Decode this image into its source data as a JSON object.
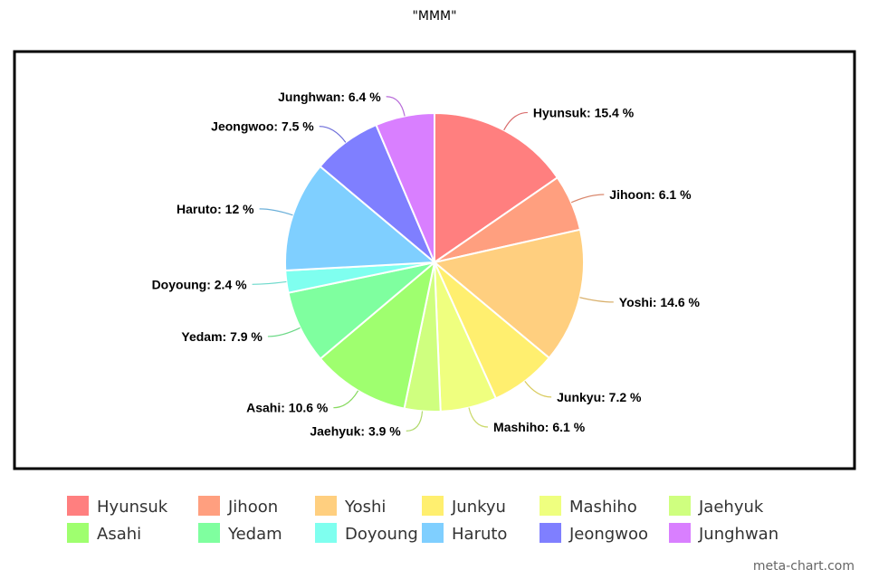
{
  "chart_data": {
    "type": "pie",
    "title": "\"MMM\"",
    "slices": [
      {
        "name": "Hyunsuk",
        "value": 15.4,
        "label": "Hyunsuk: 15.4 %",
        "color": "#ff7f7f"
      },
      {
        "name": "Jihoon",
        "value": 6.1,
        "label": "Jihoon: 6.1 %",
        "color": "#ff9f7f"
      },
      {
        "name": "Yoshi",
        "value": 14.6,
        "label": "Yoshi: 14.6 %",
        "color": "#ffcf7f"
      },
      {
        "name": "Junkyu",
        "value": 7.2,
        "label": "Junkyu: 7.2 %",
        "color": "#ffef6f"
      },
      {
        "name": "Mashiho",
        "value": 6.1,
        "label": "Mashiho: 6.1 %",
        "color": "#efff7f"
      },
      {
        "name": "Jaehyuk",
        "value": 3.9,
        "label": "Jaehyuk: 3.9 %",
        "color": "#cfff7f"
      },
      {
        "name": "Asahi",
        "value": 10.6,
        "label": "Asahi: 10.6 %",
        "color": "#9fff6f"
      },
      {
        "name": "Yedam",
        "value": 7.9,
        "label": "Yedam: 7.9 %",
        "color": "#7fff9f"
      },
      {
        "name": "Doyoung",
        "value": 2.4,
        "label": "Doyoung: 2.4 %",
        "color": "#7fffef"
      },
      {
        "name": "Haruto",
        "value": 12,
        "label": "Haruto: 12 %",
        "color": "#7fcfff"
      },
      {
        "name": "Jeongwoo",
        "value": 7.5,
        "label": "Jeongwoo: 7.5 %",
        "color": "#7f7fff"
      },
      {
        "name": "Junghwan",
        "value": 6.4,
        "label": "Junghwan: 6.4 %",
        "color": "#d97fff"
      }
    ],
    "legend_placement": "bottom"
  },
  "watermark": "meta-chart.com"
}
